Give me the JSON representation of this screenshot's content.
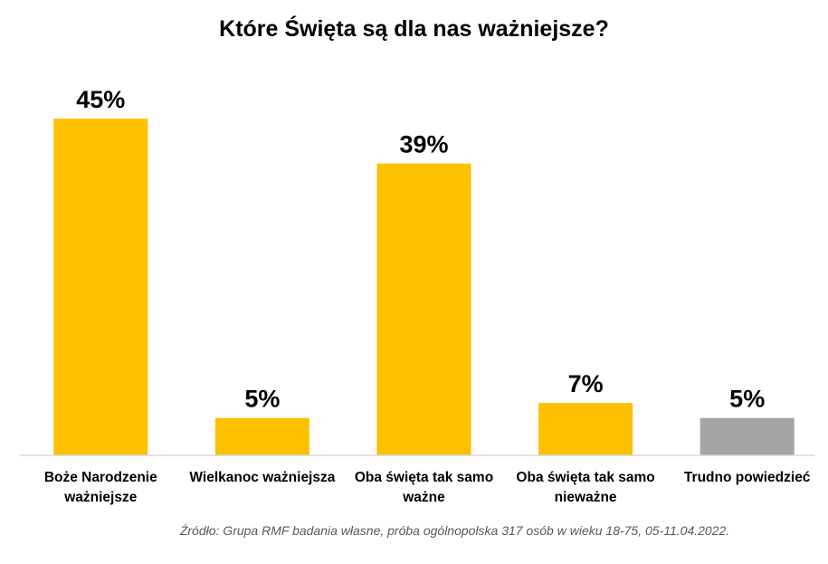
{
  "chart_data": {
    "type": "bar",
    "title": "Które Święta są dla nas ważniejsze?",
    "categories": [
      [
        "Boże Narodzenie",
        "ważniejsze"
      ],
      [
        "Wielkanoc ważniejsza"
      ],
      [
        "Oba święta tak samo",
        "ważne"
      ],
      [
        "Oba święta tak samo",
        "nieważne"
      ],
      [
        "Trudno powiedzieć"
      ]
    ],
    "values": [
      45,
      5,
      39,
      7,
      5
    ],
    "value_labels": [
      "45%",
      "5%",
      "39%",
      "7%",
      "5%"
    ],
    "bar_colors": [
      "#FFC000",
      "#FFC000",
      "#FFC000",
      "#FFC000",
      "#A5A5A5"
    ],
    "xlabel": "",
    "ylabel": "",
    "ylim": [
      0,
      45
    ],
    "grid": false,
    "legend": "none"
  },
  "source": "Źródło: Grupa RMF badania własne, próba ogólnopolska 317 osób w wieku 18-75, 05-11.04.2022.",
  "colors": {
    "axis": "#D9D9D9",
    "text": "#000000",
    "source_text": "#595959"
  }
}
